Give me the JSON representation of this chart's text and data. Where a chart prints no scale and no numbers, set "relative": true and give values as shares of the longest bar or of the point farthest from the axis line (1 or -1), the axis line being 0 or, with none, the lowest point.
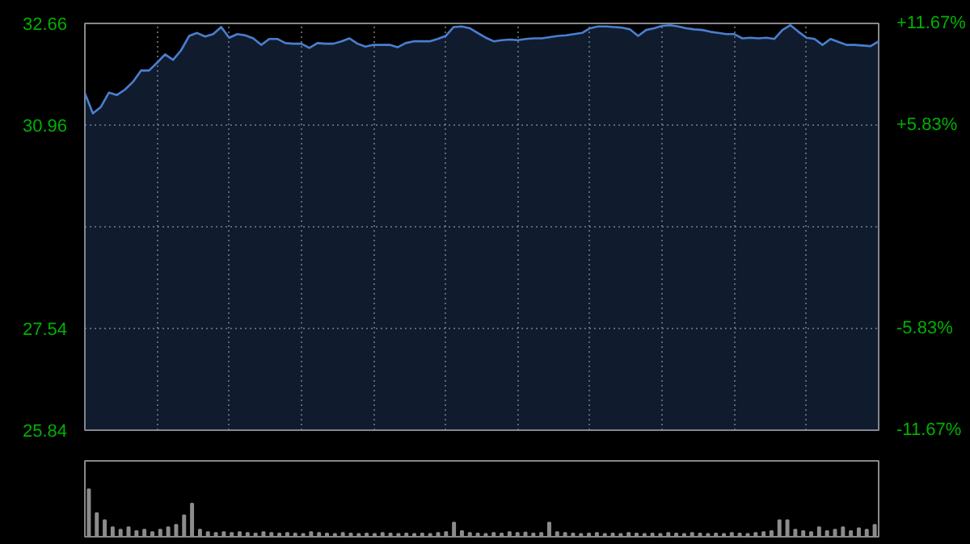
{
  "chart_data": [
    {
      "type": "area",
      "categories": [
        null,
        null,
        null,
        null,
        null,
        null,
        null,
        null,
        null,
        null,
        null,
        null,
        null,
        null,
        null,
        null,
        null,
        null,
        null,
        null,
        null,
        null,
        null,
        null,
        null,
        null,
        null,
        null,
        null,
        null,
        null,
        null,
        null,
        null,
        null,
        null,
        null,
        null,
        null,
        null,
        null,
        null,
        null,
        null,
        null,
        null,
        null,
        null,
        null,
        null,
        null,
        null,
        null,
        null,
        null,
        null,
        null,
        null,
        null,
        null,
        null,
        null,
        null,
        null,
        null,
        null,
        null,
        null,
        null,
        null,
        null,
        null,
        null,
        null,
        null,
        null,
        null,
        null,
        null,
        null,
        null,
        null,
        null,
        null,
        null,
        null,
        null,
        null,
        null,
        null,
        null,
        null,
        null,
        null,
        null,
        null,
        null,
        null,
        null,
        null
      ],
      "series": [
        {
          "color": "#4a7fd0",
          "values": [
            31.49,
            31.15,
            31.26,
            31.5,
            31.46,
            31.55,
            31.68,
            31.87,
            31.87,
            32.0,
            32.14,
            32.05,
            32.21,
            32.45,
            32.5,
            32.44,
            32.48,
            32.6,
            32.42,
            32.48,
            32.46,
            32.41,
            32.3,
            32.4,
            32.4,
            32.33,
            32.32,
            32.32,
            32.25,
            32.33,
            32.32,
            32.32,
            32.36,
            32.41,
            32.32,
            32.27,
            32.3,
            32.3,
            32.3,
            32.26,
            32.33,
            32.36,
            32.36,
            32.36,
            32.4,
            32.45,
            32.6,
            32.61,
            32.58,
            32.5,
            32.42,
            32.36,
            32.38,
            32.39,
            32.38,
            32.4,
            32.41,
            32.41,
            32.43,
            32.45,
            32.46,
            32.48,
            32.5,
            32.58,
            32.61,
            32.61,
            32.6,
            32.59,
            32.56,
            32.45,
            32.55,
            32.58,
            32.62,
            32.63,
            32.61,
            32.58,
            32.56,
            32.55,
            32.52,
            32.5,
            32.48,
            32.48,
            32.41,
            32.42,
            32.41,
            32.42,
            32.4,
            32.55,
            32.63,
            32.52,
            32.42,
            32.4,
            32.3,
            32.4,
            32.35,
            32.3,
            32.3,
            32.29,
            32.28,
            32.36
          ]
        }
      ],
      "ylim": [
        25.84,
        32.66
      ],
      "yticks": [
        25.84,
        27.54,
        {
          "value": 29.25,
          "label": null
        },
        30.96,
        32.66
      ],
      "y2lim": [
        -11.67,
        11.67
      ],
      "y2ticks": [
        {
          "value": -11.67,
          "label": "-11.67%"
        },
        {
          "value": -5.83,
          "label": "-5.83%"
        },
        {
          "value": 0,
          "label": null
        },
        {
          "value": 5.83,
          "label": "+5.83%"
        },
        {
          "value": 11.67,
          "label": "+11.67%"
        }
      ],
      "grid": true
    },
    {
      "type": "bar",
      "relative": true,
      "categories": [
        null,
        null,
        null,
        null,
        null,
        null,
        null,
        null,
        null,
        null,
        null,
        null,
        null,
        null,
        null,
        null,
        null,
        null,
        null,
        null,
        null,
        null,
        null,
        null,
        null,
        null,
        null,
        null,
        null,
        null,
        null,
        null,
        null,
        null,
        null,
        null,
        null,
        null,
        null,
        null,
        null,
        null,
        null,
        null,
        null,
        null,
        null,
        null,
        null,
        null,
        null,
        null,
        null,
        null,
        null,
        null,
        null,
        null,
        null,
        null,
        null,
        null,
        null,
        null,
        null,
        null,
        null,
        null,
        null,
        null,
        null,
        null,
        null,
        null,
        null,
        null,
        null,
        null,
        null,
        null,
        null,
        null,
        null,
        null,
        null,
        null,
        null,
        null,
        null,
        null,
        null,
        null,
        null,
        null,
        null,
        null,
        null,
        null,
        null,
        null
      ],
      "color": "#8c8c8c",
      "values": [
        1.0,
        0.5,
        0.35,
        0.2,
        0.15,
        0.2,
        0.12,
        0.15,
        0.1,
        0.15,
        0.2,
        0.25,
        0.45,
        0.7,
        0.15,
        0.1,
        0.08,
        0.1,
        0.08,
        0.1,
        0.08,
        0.07,
        0.1,
        0.08,
        0.07,
        0.08,
        0.07,
        0.06,
        0.1,
        0.08,
        0.07,
        0.06,
        0.08,
        0.07,
        0.06,
        0.07,
        0.06,
        0.08,
        0.07,
        0.06,
        0.07,
        0.06,
        0.07,
        0.06,
        0.08,
        0.1,
        0.3,
        0.12,
        0.08,
        0.07,
        0.06,
        0.08,
        0.07,
        0.1,
        0.08,
        0.09,
        0.07,
        0.08,
        0.3,
        0.1,
        0.08,
        0.07,
        0.06,
        0.07,
        0.08,
        0.06,
        0.07,
        0.06,
        0.08,
        0.07,
        0.06,
        0.07,
        0.06,
        0.08,
        0.07,
        0.06,
        0.08,
        0.07,
        0.06,
        0.07,
        0.06,
        0.08,
        0.07,
        0.06,
        0.08,
        0.1,
        0.12,
        0.35,
        0.35,
        0.15,
        0.12,
        0.1,
        0.2,
        0.12,
        0.15,
        0.2,
        0.12,
        0.18,
        0.15,
        0.25
      ]
    }
  ]
}
